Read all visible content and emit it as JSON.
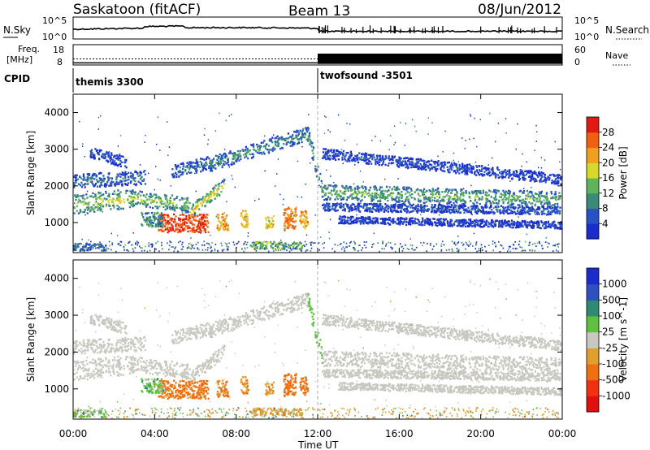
{
  "chart_data": {
    "type": "heatmap",
    "title": {
      "station": "Saskatoon (fitACF)",
      "beam": "Beam 13",
      "date": "08/Jun/2012"
    },
    "xlabel": "Time UT",
    "x_ticks": [
      "00:00",
      "04:00",
      "08:00",
      "12:00",
      "16:00",
      "20:00",
      "00:00"
    ],
    "xlim_hours": [
      0,
      24
    ],
    "panels": {
      "nsky": {
        "label": "N.Sky",
        "left_ticks": [
          "10^5",
          "10^0"
        ],
        "right_label": "N.Search",
        "right_ticks": [
          "10^5",
          "10^0"
        ]
      },
      "freq": {
        "label_line1": "Freq.",
        "label_line2": "[MHz]",
        "left_ticks": [
          "18",
          "8"
        ],
        "right_label": "Nave",
        "right_ticks": [
          "60",
          "0"
        ],
        "nave_switch_hour": 12,
        "nave_before": 8,
        "nave_after": 36
      },
      "cpid": {
        "label": "CPID",
        "programs": [
          {
            "name": "themis 3300",
            "start_hour": 0,
            "end_hour": 12
          },
          {
            "name": "twofsound -3501",
            "start_hour": 12,
            "end_hour": 24
          }
        ]
      },
      "power": {
        "ylabel": "Slant Range [km]",
        "y_ticks": [
          1000,
          2000,
          3000,
          4000
        ],
        "ylim_km": [
          180,
          4500
        ],
        "colorbar_label": "Power [dB]",
        "colorbar_ticks": [
          "4",
          "8",
          "12",
          "16",
          "20",
          "24",
          "28"
        ],
        "colorbar_colors": [
          "#1a2ccc",
          "#2850c8",
          "#3a8a78",
          "#5fb35a",
          "#d8d82a",
          "#f0a020",
          "#f06010",
          "#e01a10"
        ]
      },
      "velocity": {
        "ylabel": "Slant Range [km]",
        "y_ticks": [
          1000,
          2000,
          3000,
          4000
        ],
        "ylim_km": [
          180,
          4500
        ],
        "colorbar_label": "Velocity [m s^-1]",
        "colorbar_ticks": [
          "1000",
          "500",
          "100",
          "25",
          "-25",
          "-100",
          "-500",
          "-1000"
        ],
        "colorbar_colors": [
          "#1a2ccc",
          "#3050c0",
          "#2e8a70",
          "#60c040",
          "#c8c8c0",
          "#e0a030",
          "#f07010",
          "#f03010",
          "#e01010"
        ]
      }
    },
    "scatter_bands": [
      {
        "start_hour": 0.0,
        "end_hour": 3.0,
        "start_km": 1500,
        "end_km": 1700,
        "width_km": 380,
        "power": 18,
        "velocity": 0
      },
      {
        "start_hour": 0.0,
        "end_hour": 3.5,
        "start_km": 2150,
        "end_km": 2250,
        "width_km": 280,
        "power": 9,
        "velocity": 0
      },
      {
        "start_hour": 0.8,
        "end_hour": 2.6,
        "start_km": 2950,
        "end_km": 2650,
        "width_km": 220,
        "power": 6,
        "velocity": 0
      },
      {
        "start_hour": 2.8,
        "end_hour": 5.7,
        "start_km": 1700,
        "end_km": 1500,
        "width_km": 300,
        "power": 17,
        "velocity": 0
      },
      {
        "start_hour": 5.7,
        "end_hour": 7.4,
        "start_km": 1300,
        "end_km": 2050,
        "width_km": 260,
        "power": 20,
        "velocity": 0
      },
      {
        "start_hour": 4.8,
        "end_hour": 6.7,
        "start_km": 2400,
        "end_km": 2650,
        "width_km": 260,
        "power": 9,
        "velocity": 0
      },
      {
        "start_hour": 6.6,
        "end_hour": 11.5,
        "start_km": 2600,
        "end_km": 3450,
        "width_km": 280,
        "power": 11,
        "velocity": 0
      },
      {
        "start_hour": 11.5,
        "end_hour": 12.2,
        "start_km": 3400,
        "end_km": 1900,
        "width_km": 320,
        "power": 13,
        "velocity": 60
      },
      {
        "start_hour": 12.2,
        "end_hour": 24.0,
        "start_km": 1850,
        "end_km": 1650,
        "width_km": 300,
        "power": 15,
        "velocity": 0
      },
      {
        "start_hour": 12.2,
        "end_hour": 24.0,
        "start_km": 2900,
        "end_km": 2200,
        "width_km": 200,
        "power": 6,
        "velocity": 0
      },
      {
        "start_hour": 12.2,
        "end_hour": 24.0,
        "start_km": 1450,
        "end_km": 1350,
        "width_km": 160,
        "power": 7,
        "velocity": 0
      },
      {
        "start_hour": 13.0,
        "end_hour": 24.0,
        "start_km": 1100,
        "end_km": 950,
        "width_km": 140,
        "power": 5,
        "velocity": 0
      }
    ],
    "scatter_blobs": [
      {
        "start_hour": 4.1,
        "end_hour": 6.6,
        "start_km": 750,
        "end_km": 1250,
        "power": 28,
        "velocity": -150
      },
      {
        "start_hour": 3.3,
        "end_hour": 4.4,
        "start_km": 900,
        "end_km": 1300,
        "power": 10,
        "velocity": 60
      },
      {
        "start_hour": 7.0,
        "end_hour": 7.6,
        "start_km": 800,
        "end_km": 1250,
        "power": 22,
        "velocity": -120
      },
      {
        "start_hour": 8.2,
        "end_hour": 8.6,
        "start_km": 900,
        "end_km": 1350,
        "power": 20,
        "velocity": -100
      },
      {
        "start_hour": 9.4,
        "end_hour": 9.8,
        "start_km": 850,
        "end_km": 1200,
        "power": 18,
        "velocity": -90
      },
      {
        "start_hour": 10.3,
        "end_hour": 10.9,
        "start_km": 800,
        "end_km": 1450,
        "power": 24,
        "velocity": -200
      },
      {
        "start_hour": 11.1,
        "end_hour": 11.5,
        "start_km": 850,
        "end_km": 1350,
        "power": 22,
        "velocity": -150
      },
      {
        "start_hour": 8.6,
        "end_hour": 11.2,
        "start_km": 300,
        "end_km": 500,
        "power": 14,
        "velocity": -60
      },
      {
        "start_hour": 0.0,
        "end_hour": 1.6,
        "start_km": 250,
        "end_km": 450,
        "power": 8,
        "velocity": 60
      }
    ]
  }
}
